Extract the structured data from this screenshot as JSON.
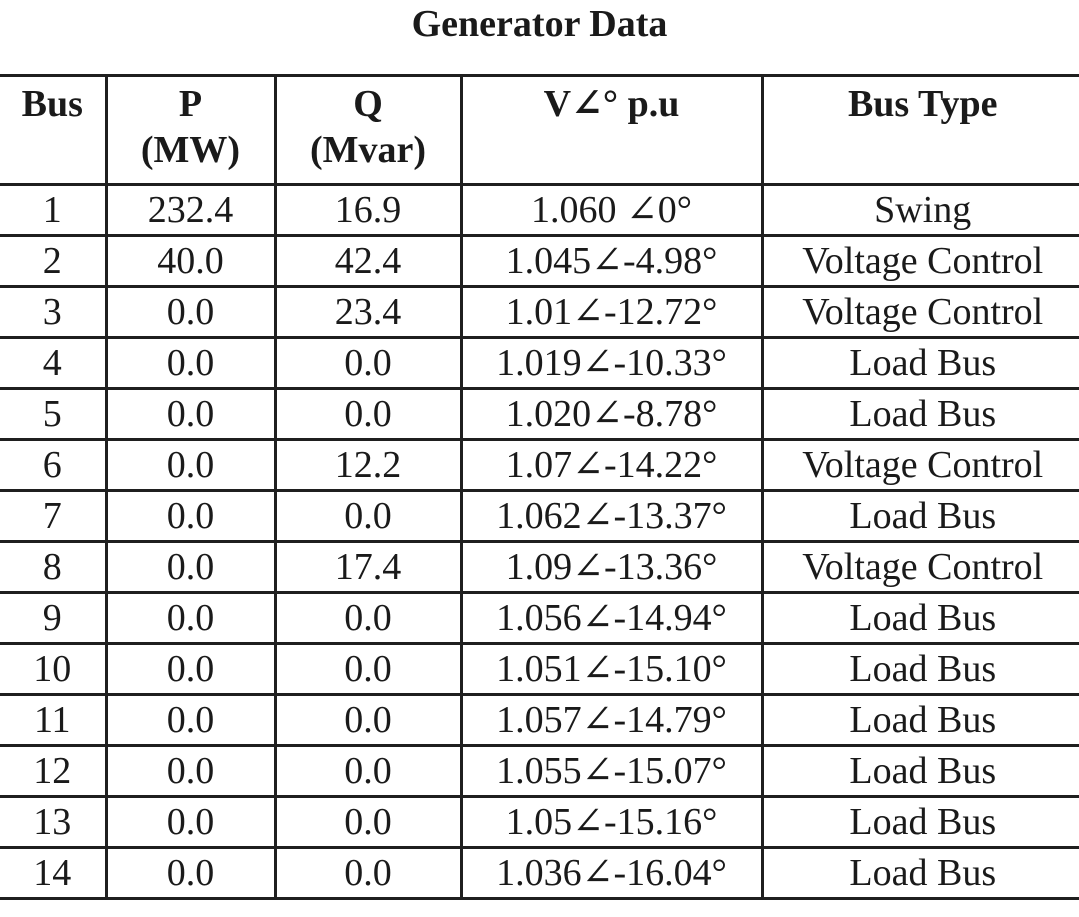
{
  "title": "Generator Data",
  "table": {
    "headers": {
      "bus": "Bus",
      "p_line1": "P",
      "p_line2": "(MW)",
      "q_line1": "Q",
      "q_line2": "(Mvar)",
      "v": "V∠° p.u",
      "type": "Bus Type"
    },
    "rows": [
      {
        "bus": "1",
        "p": "232.4",
        "q": "16.9",
        "v": "1.060 ∠0°",
        "type": "Swing"
      },
      {
        "bus": "2",
        "p": "40.0",
        "q": "42.4",
        "v": "1.045∠-4.98°",
        "type": "Voltage Control"
      },
      {
        "bus": "3",
        "p": "0.0",
        "q": "23.4",
        "v": "1.01∠-12.72°",
        "type": "Voltage Control"
      },
      {
        "bus": "4",
        "p": "0.0",
        "q": "0.0",
        "v": "1.019∠-10.33°",
        "type": "Load Bus"
      },
      {
        "bus": "5",
        "p": "0.0",
        "q": "0.0",
        "v": "1.020∠-8.78°",
        "type": "Load Bus"
      },
      {
        "bus": "6",
        "p": "0.0",
        "q": "12.2",
        "v": "1.07∠-14.22°",
        "type": "Voltage Control"
      },
      {
        "bus": "7",
        "p": "0.0",
        "q": "0.0",
        "v": "1.062∠-13.37°",
        "type": "Load Bus"
      },
      {
        "bus": "8",
        "p": "0.0",
        "q": "17.4",
        "v": "1.09∠-13.36°",
        "type": "Voltage Control"
      },
      {
        "bus": "9",
        "p": "0.0",
        "q": "0.0",
        "v": "1.056∠-14.94°",
        "type": "Load Bus"
      },
      {
        "bus": "10",
        "p": "0.0",
        "q": "0.0",
        "v": "1.051∠-15.10°",
        "type": "Load Bus"
      },
      {
        "bus": "11",
        "p": "0.0",
        "q": "0.0",
        "v": "1.057∠-14.79°",
        "type": "Load Bus"
      },
      {
        "bus": "12",
        "p": "0.0",
        "q": "0.0",
        "v": "1.055∠-15.07°",
        "type": "Load Bus"
      },
      {
        "bus": "13",
        "p": "0.0",
        "q": "0.0",
        "v": "1.05∠-15.16°",
        "type": "Load Bus"
      },
      {
        "bus": "14",
        "p": "0.0",
        "q": "0.0",
        "v": "1.036∠-16.04°",
        "type": "Load Bus"
      }
    ]
  }
}
